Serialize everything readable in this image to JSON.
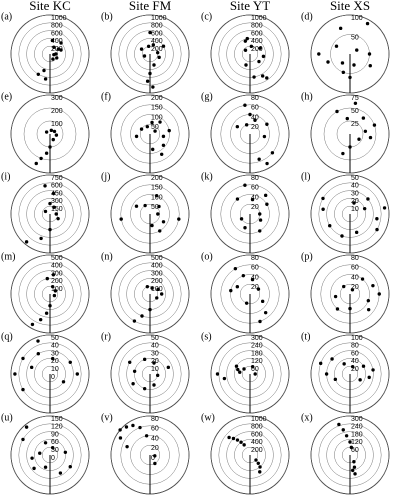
{
  "chart_data": [
    {
      "type": "polar-scatter",
      "title": "Site KC",
      "label": "(a)",
      "rlim": [
        0,
        1000
      ],
      "rticks": [
        200,
        400,
        600,
        800,
        1000
      ],
      "theta": [
        30,
        60,
        90,
        120,
        10,
        45,
        150,
        200,
        210,
        190,
        100,
        70
      ],
      "values": [
        200,
        250,
        150,
        200,
        350,
        400,
        150,
        450,
        600,
        650,
        100,
        300
      ]
    },
    {
      "type": "polar-scatter",
      "title": "Site FM",
      "label": "(b)",
      "rlim": [
        0,
        1000
      ],
      "rticks": [
        200,
        400,
        600,
        800,
        1000
      ],
      "theta": [
        350,
        20,
        80,
        110,
        160,
        180,
        185,
        175,
        300,
        250,
        60,
        0
      ],
      "values": [
        200,
        250,
        200,
        250,
        300,
        500,
        700,
        850,
        250,
        150,
        400,
        550
      ]
    },
    {
      "type": "polar-scatter",
      "title": "Site YT",
      "label": "(c)",
      "rlim": [
        0,
        1000
      ],
      "rticks": [
        200,
        400,
        600,
        800,
        1000
      ],
      "theta": [
        340,
        350,
        10,
        60,
        100,
        130,
        150,
        145,
        170,
        200,
        310
      ],
      "values": [
        350,
        400,
        200,
        300,
        350,
        300,
        650,
        750,
        600,
        300,
        150
      ]
    },
    {
      "type": "polar-scatter",
      "title": "Site XS",
      "label": "(d)",
      "rlim": [
        0,
        100
      ],
      "rticks": [
        50,
        100
      ],
      "theta": [
        30,
        340,
        90,
        200,
        220,
        180,
        160,
        120,
        250,
        300,
        60,
        270
      ],
      "values": [
        90,
        70,
        50,
        50,
        30,
        60,
        30,
        60,
        60,
        40,
        20,
        80
      ]
    },
    {
      "type": "polar-scatter",
      "label": "(e)",
      "rlim": [
        0,
        300
      ],
      "rticks": [
        100,
        200,
        300
      ],
      "theta": [
        20,
        60,
        100,
        150,
        190,
        200,
        205,
        180,
        300
      ],
      "values": [
        30,
        40,
        50,
        50,
        150,
        200,
        250,
        100,
        30
      ]
    },
    {
      "type": "polar-scatter",
      "label": "(f)",
      "rlim": [
        0,
        200
      ],
      "rticks": [
        50,
        100,
        150,
        200
      ],
      "theta": [
        340,
        10,
        40,
        80,
        100,
        130,
        150,
        170,
        300,
        260,
        60
      ],
      "values": [
        40,
        60,
        80,
        100,
        70,
        90,
        120,
        80,
        50,
        70,
        30
      ]
    },
    {
      "type": "polar-scatter",
      "label": "(g)",
      "rlim": [
        0,
        80
      ],
      "rticks": [
        20,
        40,
        60,
        80
      ],
      "theta": [
        350,
        0,
        20,
        60,
        100,
        130,
        150,
        160,
        340,
        300
      ],
      "values": [
        60,
        40,
        30,
        40,
        30,
        60,
        70,
        55,
        20,
        30
      ]
    },
    {
      "type": "polar-scatter",
      "label": "(h)",
      "rlim": [
        0,
        75
      ],
      "rticks": [
        25,
        50,
        75
      ],
      "theta": [
        10,
        40,
        70,
        80,
        100,
        120,
        200,
        180,
        330,
        350
      ],
      "values": [
        60,
        40,
        50,
        30,
        40,
        20,
        40,
        25,
        50,
        30
      ]
    },
    {
      "type": "polar-scatter",
      "label": "(i)",
      "rlim": [
        0,
        750
      ],
      "rticks": [
        150,
        300,
        450,
        600,
        750
      ],
      "theta": [
        0,
        10,
        30,
        90,
        120,
        180,
        200,
        220,
        300,
        350
      ],
      "values": [
        200,
        400,
        150,
        120,
        180,
        300,
        500,
        700,
        100,
        550
      ]
    },
    {
      "type": "polar-scatter",
      "label": "(j)",
      "rlim": [
        0,
        200
      ],
      "rticks": [
        50,
        100,
        150,
        200
      ],
      "theta": [
        20,
        50,
        90,
        120,
        150,
        170,
        260,
        300,
        330,
        100
      ],
      "values": [
        100,
        60,
        40,
        80,
        100,
        60,
        150,
        80,
        50,
        150
      ]
    },
    {
      "type": "polar-scatter",
      "label": "(k)",
      "rlim": [
        0,
        80
      ],
      "rticks": [
        20,
        40,
        60,
        80
      ],
      "theta": [
        10,
        40,
        60,
        90,
        120,
        150,
        200,
        240,
        320,
        350
      ],
      "values": [
        30,
        50,
        40,
        20,
        25,
        40,
        30,
        20,
        40,
        60
      ]
    },
    {
      "type": "polar-scatter",
      "label": "(l)",
      "rlim": [
        0,
        50
      ],
      "rticks": [
        10,
        20,
        30,
        40,
        50
      ],
      "theta": [
        300,
        50,
        70,
        100,
        120,
        160,
        200,
        240,
        280,
        20,
        80
      ],
      "values": [
        40,
        30,
        20,
        35,
        40,
        25,
        30,
        30,
        35,
        15,
        45
      ]
    },
    {
      "type": "polar-scatter",
      "label": "(m)",
      "rlim": [
        0,
        500
      ],
      "rticks": [
        100,
        200,
        300,
        400,
        500
      ],
      "theta": [
        20,
        60,
        110,
        180,
        190,
        200,
        210,
        350,
        10
      ],
      "values": [
        100,
        80,
        60,
        150,
        250,
        350,
        450,
        200,
        250
      ]
    },
    {
      "type": "polar-scatter",
      "label": "(n)",
      "rlim": [
        0,
        500
      ],
      "rticks": [
        100,
        200,
        300,
        400,
        500
      ],
      "theta": [
        20,
        60,
        90,
        120,
        180,
        200,
        210,
        340
      ],
      "values": [
        80,
        120,
        150,
        100,
        200,
        300,
        400,
        100
      ]
    },
    {
      "type": "polar-scatter",
      "label": "(o)",
      "rlim": [
        0,
        80
      ],
      "rticks": [
        20,
        40,
        60,
        80
      ],
      "theta": [
        330,
        340,
        10,
        60,
        120,
        140,
        160,
        200,
        280,
        300
      ],
      "values": [
        60,
        40,
        30,
        20,
        30,
        50,
        60,
        20,
        40,
        30
      ]
    },
    {
      "type": "polar-scatter",
      "label": "(p)",
      "rlim": [
        0,
        80
      ],
      "rticks": [
        20,
        40,
        60,
        80
      ],
      "theta": [
        40,
        70,
        90,
        110,
        130,
        180,
        220,
        260,
        320,
        30
      ],
      "values": [
        40,
        50,
        60,
        40,
        50,
        30,
        40,
        30,
        20,
        10
      ]
    },
    {
      "type": "polar-scatter",
      "label": "(q)",
      "rlim": [
        0,
        50
      ],
      "rticks": [
        0,
        10,
        20,
        30,
        40,
        50
      ],
      "theta": [
        300,
        330,
        10,
        60,
        90,
        120,
        240,
        270,
        290,
        340
      ],
      "values": [
        40,
        30,
        20,
        30,
        35,
        20,
        40,
        45,
        25,
        45
      ]
    },
    {
      "type": "polar-scatter",
      "label": "(r)",
      "rlim": [
        0,
        50
      ],
      "rticks": [
        10,
        20,
        30,
        40,
        50
      ],
      "theta": [
        300,
        340,
        20,
        70,
        100,
        160,
        200,
        240,
        280
      ],
      "values": [
        30,
        20,
        15,
        25,
        10,
        15,
        20,
        25,
        20
      ]
    },
    {
      "type": "polar-scatter",
      "label": "(s)",
      "rlim": [
        0,
        300
      ],
      "rticks": [
        60,
        120,
        180,
        240,
        300
      ],
      "theta": [
        280,
        290,
        300,
        260,
        270,
        310,
        20,
        90
      ],
      "values": [
        80,
        100,
        120,
        200,
        250,
        60,
        60,
        40
      ]
    },
    {
      "type": "polar-scatter",
      "label": "(t)",
      "rlim": [
        0,
        100
      ],
      "rticks": [
        20,
        40,
        60,
        80,
        100
      ],
      "theta": [
        290,
        310,
        330,
        20,
        60,
        80,
        100,
        120,
        250,
        270
      ],
      "values": [
        80,
        60,
        30,
        20,
        40,
        60,
        50,
        30,
        40,
        60
      ]
    },
    {
      "type": "polar-scatter",
      "label": "(u)",
      "rlim": [
        0,
        150
      ],
      "rticks": [
        0,
        30,
        60,
        90,
        120,
        150
      ],
      "theta": [
        300,
        320,
        340,
        20,
        80,
        120,
        150,
        200,
        230,
        260,
        280
      ],
      "values": [
        120,
        140,
        50,
        30,
        60,
        90,
        80,
        50,
        80,
        70,
        40
      ]
    },
    {
      "type": "polar-scatter",
      "label": "(v)",
      "rlim": [
        0,
        80
      ],
      "rticks": [
        0,
        20,
        40,
        60,
        80
      ],
      "theta": [
        300,
        310,
        320,
        330,
        340,
        290,
        350,
        100,
        150
      ],
      "values": [
        70,
        80,
        75,
        70,
        60,
        50,
        40,
        10,
        20
      ]
    },
    {
      "type": "polar-scatter",
      "label": "(w)",
      "rlim": [
        0,
        1000
      ],
      "rticks": [
        200,
        400,
        600,
        800,
        1000
      ],
      "theta": [
        310,
        315,
        320,
        325,
        130,
        135,
        140,
        150,
        330
      ],
      "values": [
        700,
        600,
        500,
        400,
        200,
        300,
        400,
        500,
        300
      ]
    },
    {
      "type": "polar-scatter",
      "label": "(x)",
      "rlim": [
        0,
        300
      ],
      "rticks": [
        60,
        120,
        180,
        240,
        300
      ],
      "theta": [
        340,
        345,
        350,
        0,
        150,
        160,
        165,
        170,
        10
      ],
      "values": [
        250,
        200,
        150,
        100,
        60,
        100,
        150,
        120,
        60
      ]
    }
  ]
}
